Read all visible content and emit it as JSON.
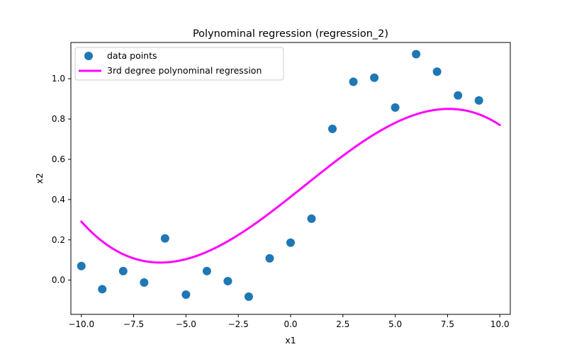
{
  "chart_data": {
    "type": "scatter",
    "title": "Polynominal regression (regression_2)",
    "xlabel": "x1",
    "ylabel": "x2",
    "xlim": [
      -10.5,
      10.5
    ],
    "ylim": [
      -0.17,
      1.18
    ],
    "xticks": [
      -10.0,
      -7.5,
      -5.0,
      -2.5,
      0.0,
      2.5,
      5.0,
      7.5,
      10.0
    ],
    "xtick_labels": [
      "−10.0",
      "−7.5",
      "−5.0",
      "−2.5",
      "0.0",
      "2.5",
      "5.0",
      "7.5",
      "10.0"
    ],
    "yticks": [
      0.0,
      0.2,
      0.4,
      0.6,
      0.8,
      1.0
    ],
    "ytick_labels": [
      "0.0",
      "0.2",
      "0.4",
      "0.6",
      "0.8",
      "1.0"
    ],
    "legend_position": "top-left",
    "series": [
      {
        "name": "data points",
        "kind": "scatter",
        "color": "#1f77b4",
        "x": [
          -10,
          -9,
          -8,
          -7,
          -6,
          -5,
          -4,
          -3,
          -2,
          -1,
          0,
          1,
          2,
          3,
          4,
          5,
          6,
          7,
          8,
          9
        ],
        "y": [
          0.07,
          -0.045,
          0.045,
          -0.012,
          0.207,
          -0.072,
          0.045,
          -0.005,
          -0.082,
          0.108,
          0.186,
          0.305,
          0.751,
          0.985,
          1.005,
          0.857,
          1.122,
          1.035,
          0.917,
          0.892
        ]
      },
      {
        "name": "3rd degree polynominal regression",
        "kind": "line",
        "color": "#ff00ff",
        "poly_coeffs": [
          0.4134,
          0.08227,
          0.001168,
          -0.000583
        ],
        "x_range": [
          -10,
          10
        ]
      }
    ]
  }
}
